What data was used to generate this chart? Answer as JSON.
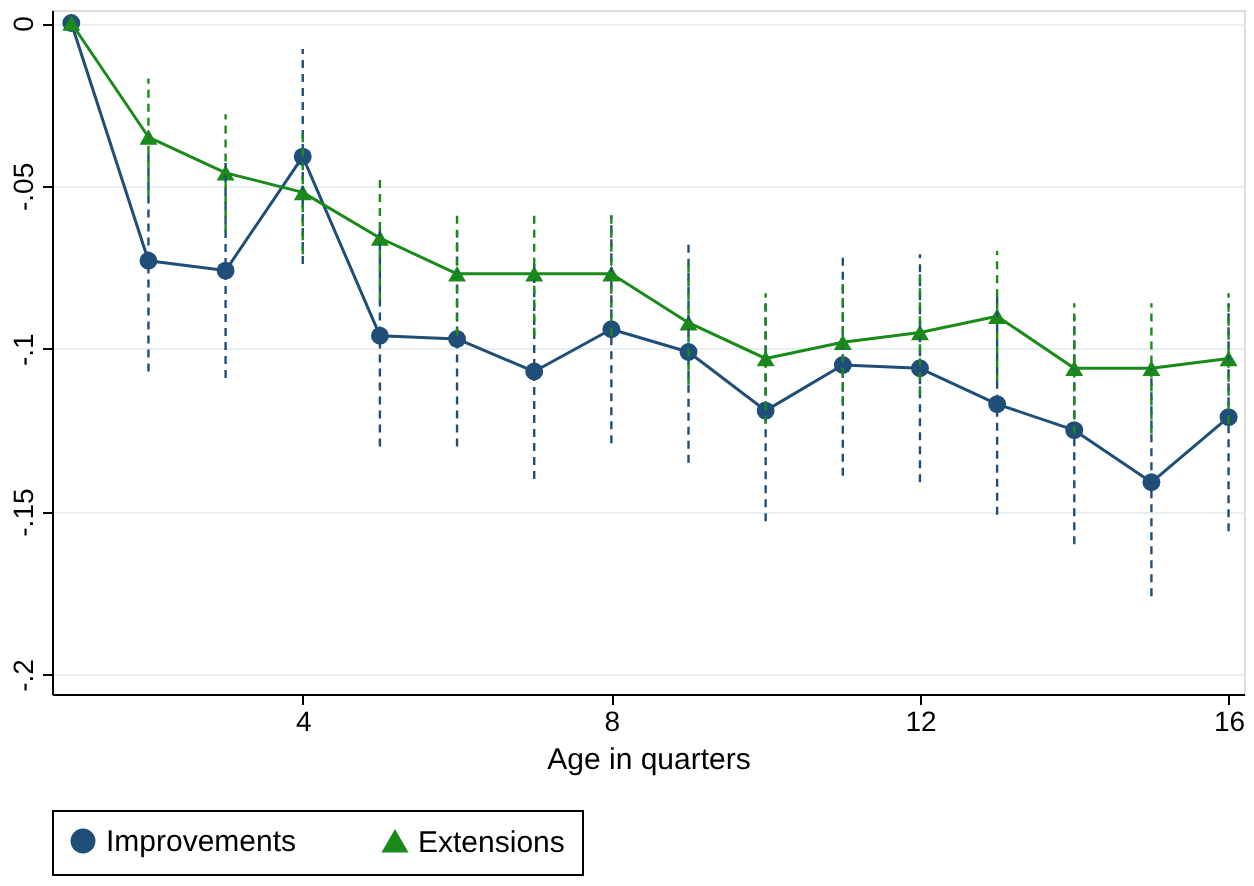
{
  "chart_data": {
    "type": "line",
    "xlabel": "Age in quarters",
    "x": [
      1,
      2,
      3,
      4,
      5,
      6,
      7,
      8,
      9,
      10,
      11,
      12,
      13,
      14,
      15,
      16
    ],
    "series": [
      {
        "name": "Improvements",
        "color": "#1f4e79",
        "marker": "circle",
        "values": [
          0,
          -0.073,
          -0.076,
          -0.041,
          -0.096,
          -0.097,
          -0.107,
          -0.094,
          -0.101,
          -0.119,
          -0.105,
          -0.106,
          -0.117,
          -0.125,
          -0.141,
          -0.121
        ],
        "errors": [
          null,
          0.034,
          0.033,
          0.033,
          0.034,
          0.033,
          0.033,
          0.035,
          0.034,
          0.034,
          0.034,
          0.035,
          0.034,
          0.035,
          0.035,
          0.035
        ]
      },
      {
        "name": "Extensions",
        "color": "#1a8a1a",
        "marker": "triangle",
        "values": [
          0,
          -0.035,
          -0.046,
          -0.052,
          -0.066,
          -0.077,
          -0.077,
          -0.077,
          -0.092,
          -0.103,
          -0.098,
          -0.095,
          -0.09,
          -0.106,
          -0.106,
          -0.103
        ],
        "errors": [
          null,
          0.018,
          0.018,
          0.019,
          0.019,
          0.019,
          0.019,
          0.019,
          0.019,
          0.02,
          0.019,
          0.019,
          0.02,
          0.02,
          0.02,
          0.02
        ]
      }
    ],
    "xlim": [
      0.75,
      16.2
    ],
    "xticks": [
      4,
      8,
      12,
      16
    ],
    "ylim": [
      -0.206,
      0.004
    ],
    "yticks": [
      {
        "value": 0,
        "label": "0"
      },
      {
        "value": -0.05,
        "label": "-.05"
      },
      {
        "value": -0.1,
        "label": "-.1"
      },
      {
        "value": -0.15,
        "label": "-.15"
      },
      {
        "value": -0.2,
        "label": "-.2"
      }
    ],
    "grid": "y",
    "legend": "bottom",
    "line_style": "solid"
  }
}
